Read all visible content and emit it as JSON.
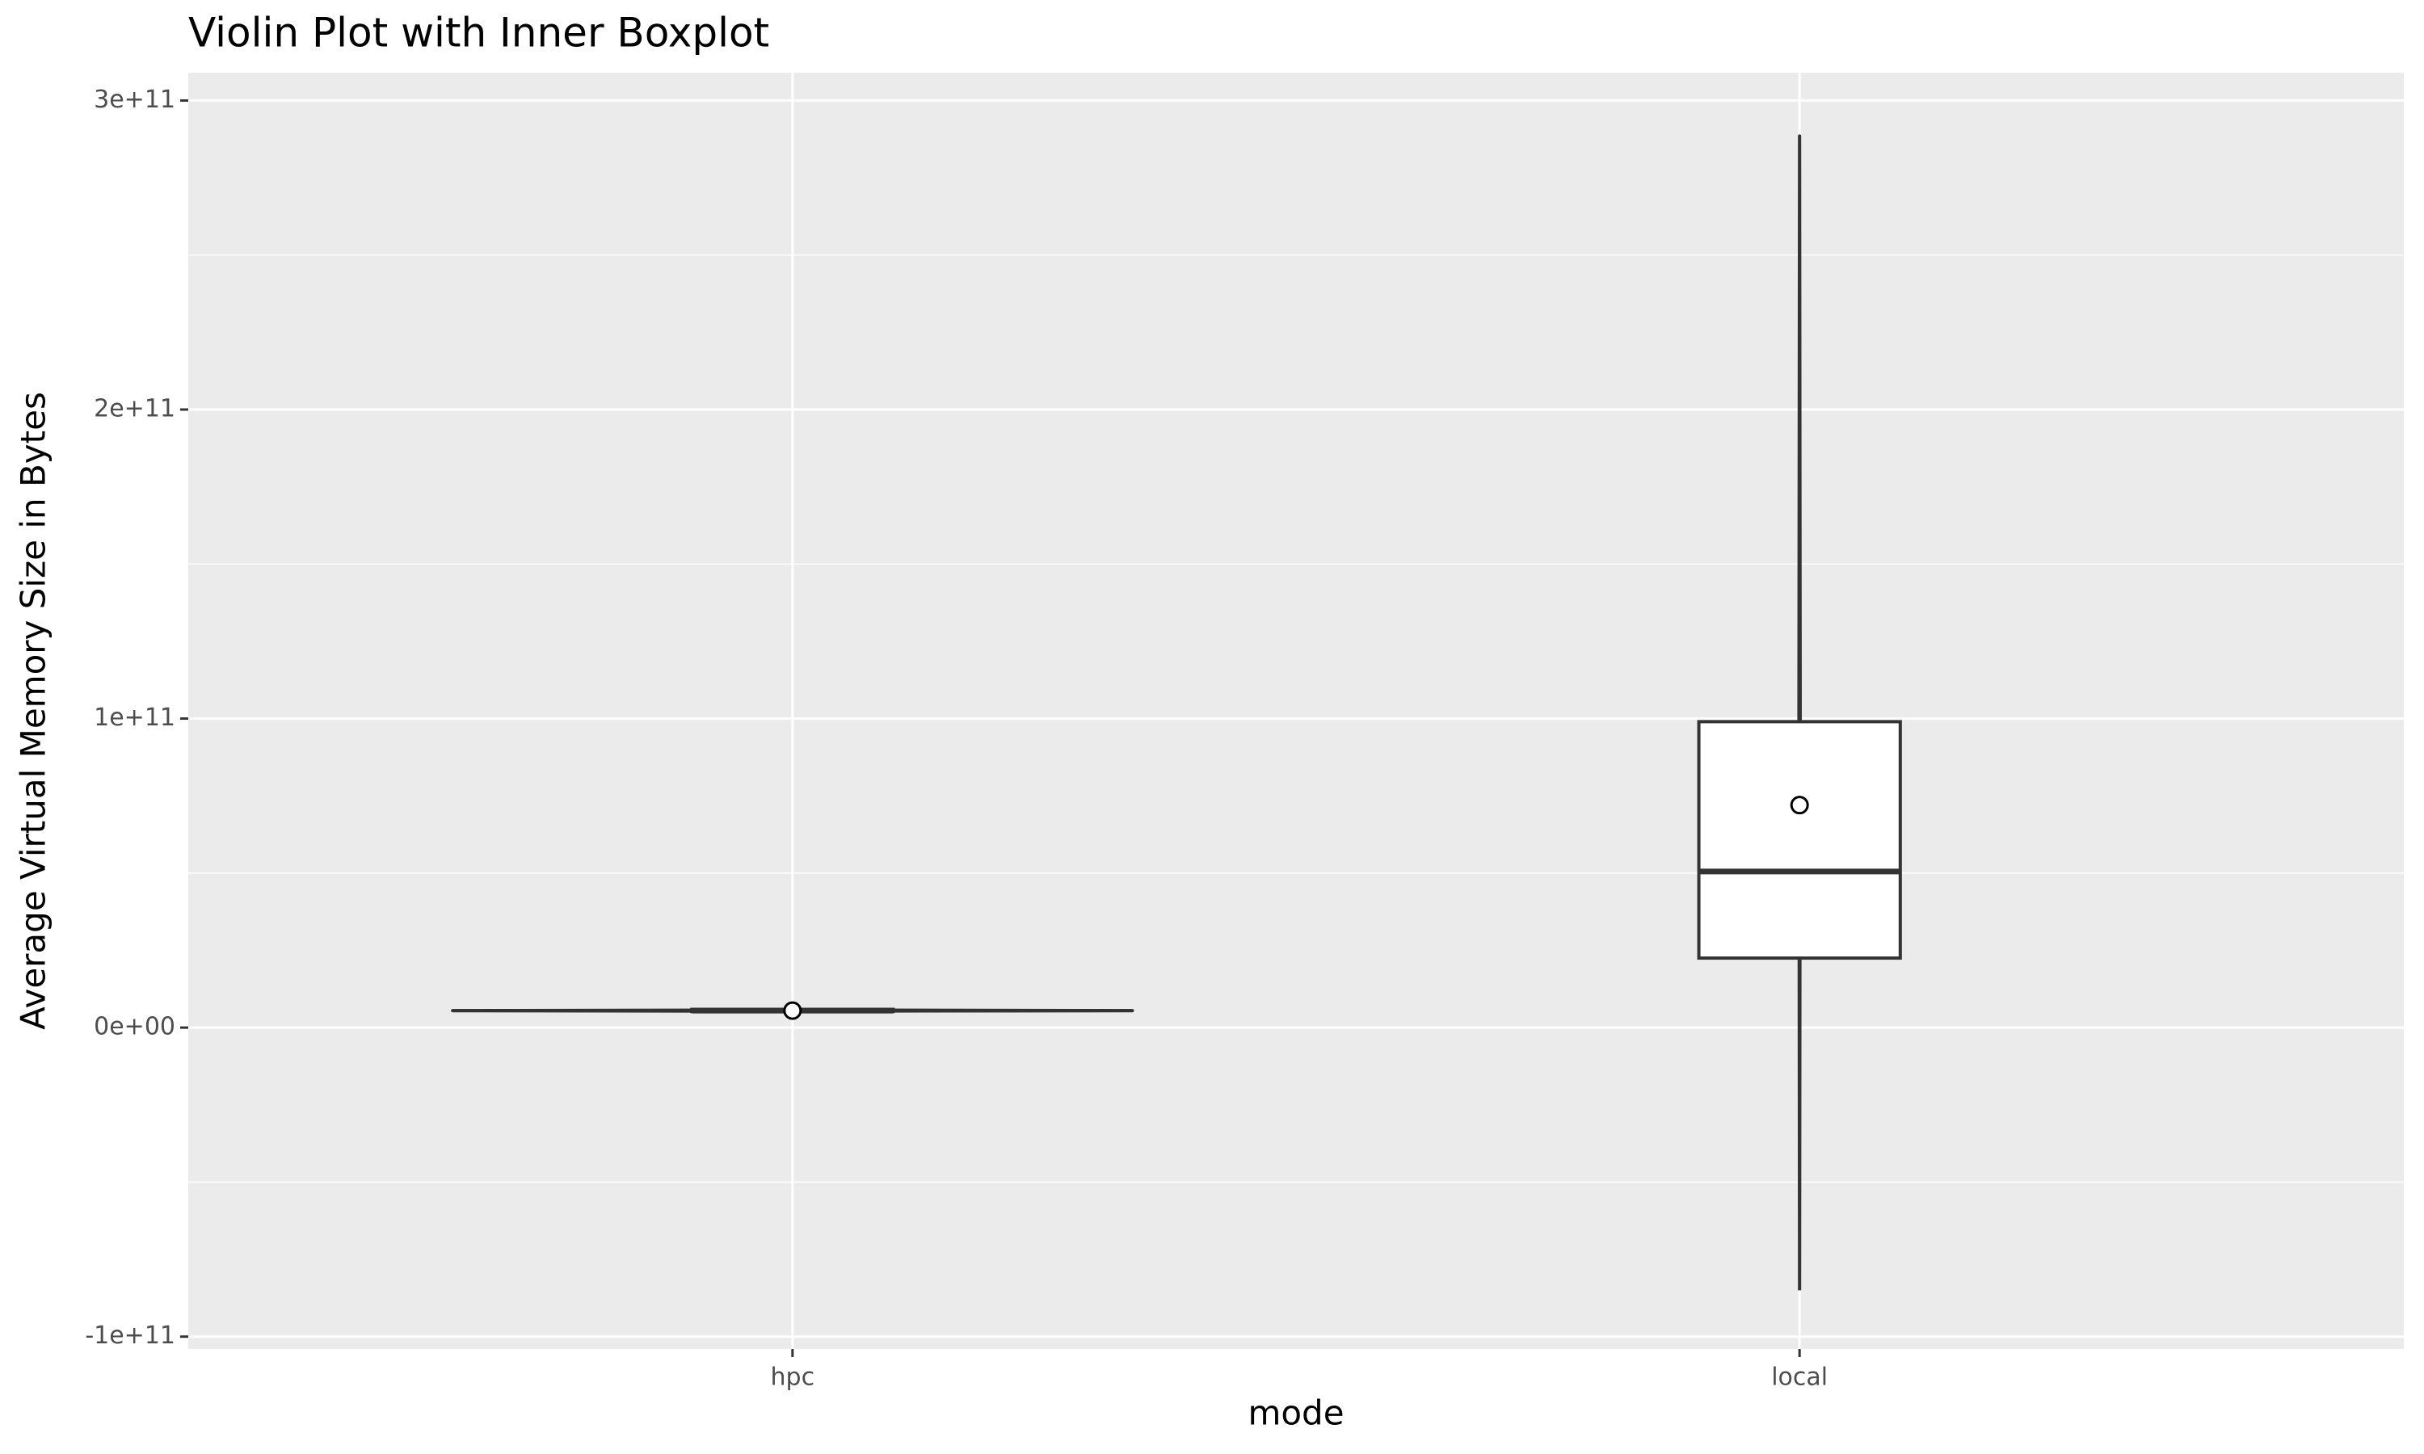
{
  "chart_data": {
    "type": "violin",
    "title": "Violin Plot with Inner Boxplot",
    "x_label": "mode",
    "y_label": "Average Virtual Memory Size in Bytes",
    "categories": [
      "hpc",
      "local"
    ],
    "violin_min": [
      5300000000,
      -85000000000
    ],
    "violin_max": [
      5700000000,
      288500000000
    ],
    "q1": [
      5200000000,
      22500000000
    ],
    "median": [
      5500000000,
      50500000000
    ],
    "q3": [
      5900000000,
      99000000000
    ],
    "mean": [
      5500000000,
      72000000000
    ],
    "ylim": [
      -104000000000,
      309000000000
    ],
    "yticks": [
      {
        "value": -100000000000,
        "label": "-1e+11"
      },
      {
        "value": 0,
        "label": "0e+00"
      },
      {
        "value": 100000000000,
        "label": "1e+11"
      },
      {
        "value": 200000000000,
        "label": "2e+11"
      },
      {
        "value": 300000000000,
        "label": "3e+11"
      }
    ],
    "grid": true,
    "color": "#333333"
  }
}
